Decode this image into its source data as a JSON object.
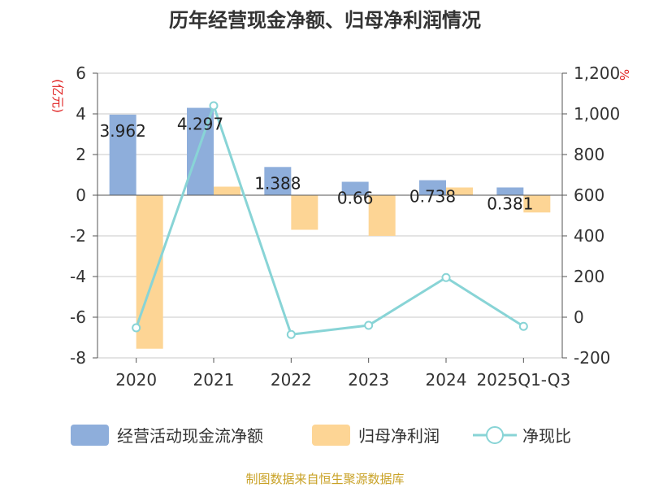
{
  "title": "历年经营现金净额、归母净利润情况",
  "footer": "制图数据来自恒生聚源数据库",
  "colors": {
    "cash": "#8eaedb",
    "profit": "#fdd595",
    "ratio": "#88d4d6",
    "grid": "#c8c8c8",
    "axis": "#555555",
    "unit": "#e02020",
    "footer": "#c9a227"
  },
  "chart_data": {
    "type": "bar",
    "title": "历年经营现金净额、归母净利润情况",
    "categories": [
      "2020",
      "2021",
      "2022",
      "2023",
      "2024",
      "2025Q1-Q3"
    ],
    "series": [
      {
        "name": "经营活动现金流净额",
        "type": "bar",
        "axis": "left",
        "values": [
          3.962,
          4.297,
          1.388,
          0.66,
          0.738,
          0.381
        ],
        "labels": [
          "3.962",
          "4.297",
          "1.388",
          "0.66",
          "0.738",
          "0.381"
        ]
      },
      {
        "name": "归母净利润",
        "type": "bar",
        "axis": "left",
        "values": [
          -7.55,
          0.42,
          -1.7,
          -2.0,
          0.38,
          -0.85
        ]
      },
      {
        "name": "净现比",
        "type": "line",
        "axis": "right",
        "values": [
          -52,
          1040,
          -85,
          -40,
          195,
          -45
        ]
      }
    ],
    "y_left": {
      "unit": "(亿元)",
      "ylim": [
        -8,
        6
      ],
      "ticks": [
        "-8",
        "-6",
        "-4",
        "-2",
        "0",
        "2",
        "4",
        "6"
      ]
    },
    "y_right": {
      "unit": "%",
      "ylim": [
        -200,
        1200
      ],
      "ticks": [
        "-200",
        "0",
        "200",
        "400",
        "600",
        "800",
        "1,000",
        "1,200"
      ]
    },
    "grid": true,
    "legend_position": "bottom"
  }
}
